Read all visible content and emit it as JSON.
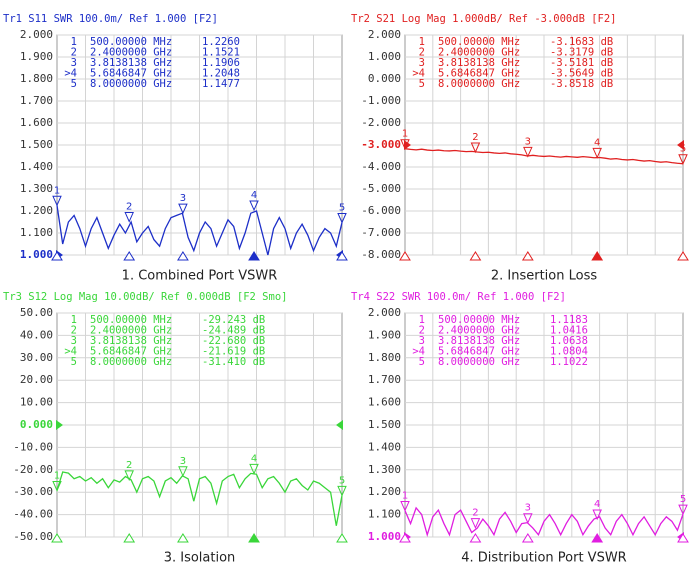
{
  "chart_data": [
    {
      "type": "line",
      "header": "Tr1 S11 SWR 100.0m/ Ref 1.000 [F2]",
      "caption": "1. Combined Port VSWR",
      "xlim": [
        0.5,
        8
      ],
      "ylim": [
        1.0,
        2.0
      ],
      "ref": 1.0,
      "yticks": [
        {
          "value": 1.0,
          "label": "1.000"
        },
        {
          "value": 1.1,
          "label": "1.100"
        },
        {
          "value": 1.2,
          "label": "1.200"
        },
        {
          "value": 1.3,
          "label": "1.300"
        },
        {
          "value": 1.4,
          "label": "1.400"
        },
        {
          "value": 1.5,
          "label": "1.500"
        },
        {
          "value": 1.6,
          "label": "1.600"
        },
        {
          "value": 1.7,
          "label": "1.700"
        },
        {
          "value": 1.8,
          "label": "1.800"
        },
        {
          "value": 1.9,
          "label": "1.900"
        },
        {
          "value": 2.0,
          "label": "2.000"
        }
      ],
      "series": [
        {
          "color": "#1d2fc8",
          "x": [
            0.5,
            0.65,
            0.8,
            0.95,
            1.1,
            1.25,
            1.4,
            1.55,
            1.7,
            1.85,
            2.0,
            2.15,
            2.3,
            2.45,
            2.6,
            2.75,
            2.9,
            3.05,
            3.2,
            3.35,
            3.5,
            3.65,
            3.8,
            3.95,
            4.1,
            4.25,
            4.4,
            4.55,
            4.7,
            4.85,
            5.0,
            5.15,
            5.3,
            5.45,
            5.6,
            5.75,
            5.9,
            6.05,
            6.2,
            6.35,
            6.5,
            6.65,
            6.8,
            6.95,
            7.1,
            7.25,
            7.4,
            7.55,
            7.7,
            7.85,
            8.0
          ],
          "values": [
            1.226,
            1.05,
            1.15,
            1.18,
            1.12,
            1.04,
            1.12,
            1.17,
            1.1,
            1.03,
            1.09,
            1.14,
            1.1,
            1.15,
            1.06,
            1.1,
            1.13,
            1.07,
            1.04,
            1.12,
            1.17,
            1.18,
            1.19,
            1.08,
            1.02,
            1.1,
            1.15,
            1.12,
            1.04,
            1.1,
            1.16,
            1.13,
            1.03,
            1.1,
            1.19,
            1.2,
            1.1,
            1.0,
            1.12,
            1.17,
            1.12,
            1.03,
            1.1,
            1.14,
            1.09,
            1.02,
            1.08,
            1.12,
            1.1,
            1.04,
            1.1477
          ]
        }
      ],
      "markers": {
        "ids": [
          "1",
          "2",
          "3",
          ">4",
          "5"
        ],
        "plot_labels": [
          "1",
          "2",
          "3",
          "4",
          "5"
        ],
        "x": [
          0.5,
          2.4,
          3.8138138,
          5.6846847,
          8.0
        ],
        "x_labels": [
          "500.00000 MHz",
          "2.4000000 GHz",
          "3.8138138 GHz",
          "5.6846847 GHz",
          "8.0000000 GHz"
        ],
        "values": [
          1.226,
          1.1521,
          1.1906,
          1.2048,
          1.1477
        ],
        "value_labels": [
          "1.2260",
          "1.1521",
          "1.1906",
          "1.2048",
          "1.1477"
        ]
      }
    },
    {
      "type": "line",
      "header": "Tr2 S21 Log Mag 1.000dB/ Ref -3.000dB [F2]",
      "caption": "2. Insertion Loss",
      "xlim": [
        0.5,
        8
      ],
      "ylim": [
        -8,
        2
      ],
      "ref": -3,
      "yticks": [
        {
          "value": -8,
          "label": "-8.000"
        },
        {
          "value": -7,
          "label": "-7.000"
        },
        {
          "value": -6,
          "label": "-6.000"
        },
        {
          "value": -5,
          "label": "-5.000"
        },
        {
          "value": -4,
          "label": "-4.000"
        },
        {
          "value": -3,
          "label": "-3.000"
        },
        {
          "value": -2,
          "label": "-2.000"
        },
        {
          "value": -1,
          "label": "-1.000"
        },
        {
          "value": 0,
          "label": "0.000"
        },
        {
          "value": 1,
          "label": "1.000"
        },
        {
          "value": 2,
          "label": "2.000"
        }
      ],
      "series": [
        {
          "color": "#e02020",
          "x": [
            0.5,
            0.65,
            0.8,
            0.95,
            1.1,
            1.25,
            1.4,
            1.55,
            1.7,
            1.85,
            2.0,
            2.15,
            2.3,
            2.45,
            2.6,
            2.75,
            2.9,
            3.05,
            3.2,
            3.35,
            3.5,
            3.65,
            3.8,
            3.95,
            4.1,
            4.25,
            4.4,
            4.55,
            4.7,
            4.85,
            5.0,
            5.15,
            5.3,
            5.45,
            5.6,
            5.75,
            5.9,
            6.05,
            6.2,
            6.35,
            6.5,
            6.65,
            6.8,
            6.95,
            7.1,
            7.25,
            7.4,
            7.55,
            7.7,
            7.85,
            8.0
          ],
          "values": [
            -3.168,
            -3.2,
            -3.22,
            -3.19,
            -3.23,
            -3.25,
            -3.23,
            -3.26,
            -3.27,
            -3.25,
            -3.28,
            -3.3,
            -3.29,
            -3.32,
            -3.34,
            -3.33,
            -3.36,
            -3.38,
            -3.36,
            -3.4,
            -3.42,
            -3.45,
            -3.5,
            -3.47,
            -3.5,
            -3.52,
            -3.5,
            -3.53,
            -3.55,
            -3.52,
            -3.54,
            -3.56,
            -3.53,
            -3.55,
            -3.58,
            -3.57,
            -3.6,
            -3.64,
            -3.62,
            -3.66,
            -3.68,
            -3.66,
            -3.7,
            -3.73,
            -3.71,
            -3.75,
            -3.78,
            -3.76,
            -3.8,
            -3.83,
            -3.852
          ]
        }
      ],
      "markers": {
        "ids": [
          "1",
          "2",
          "3",
          ">4",
          "5"
        ],
        "plot_labels": [
          "1",
          "2",
          "3",
          "4",
          "5"
        ],
        "x": [
          0.5,
          2.4,
          3.8138138,
          5.6846847,
          8.0
        ],
        "x_labels": [
          "500.00000 MHz",
          "2.4000000 GHz",
          "3.8138138 GHz",
          "5.6846847 GHz",
          "8.0000000 GHz"
        ],
        "values": [
          -3.1683,
          -3.3179,
          -3.5181,
          -3.5649,
          -3.8518
        ],
        "value_labels": [
          "-3.1683 dB",
          "-3.3179 dB",
          "-3.5181 dB",
          "-3.5649 dB",
          "-3.8518 dB"
        ]
      }
    },
    {
      "type": "line",
      "header": "Tr3 S12 Log Mag 10.00dB/ Ref 0.000dB [F2 Smo]",
      "caption": "3. Isolation",
      "xlim": [
        0.5,
        8
      ],
      "ylim": [
        -50,
        50
      ],
      "ref": 0,
      "yticks": [
        {
          "value": -50,
          "label": "-50.00"
        },
        {
          "value": -40,
          "label": "-40.00"
        },
        {
          "value": -30,
          "label": "-30.00"
        },
        {
          "value": -20,
          "label": "-20.00"
        },
        {
          "value": -10,
          "label": "-10.00"
        },
        {
          "value": 0,
          "label": "0.000"
        },
        {
          "value": 10,
          "label": "10.00"
        },
        {
          "value": 20,
          "label": "20.00"
        },
        {
          "value": 30,
          "label": "30.00"
        },
        {
          "value": 40,
          "label": "40.00"
        },
        {
          "value": 50,
          "label": "50.00"
        }
      ],
      "series": [
        {
          "color": "#3ad63a",
          "x": [
            0.5,
            0.65,
            0.8,
            0.95,
            1.1,
            1.25,
            1.4,
            1.55,
            1.7,
            1.85,
            2.0,
            2.15,
            2.3,
            2.45,
            2.6,
            2.75,
            2.9,
            3.05,
            3.2,
            3.35,
            3.5,
            3.65,
            3.8,
            3.95,
            4.1,
            4.25,
            4.4,
            4.55,
            4.7,
            4.85,
            5.0,
            5.15,
            5.3,
            5.45,
            5.6,
            5.75,
            5.9,
            6.05,
            6.2,
            6.35,
            6.5,
            6.65,
            6.8,
            6.95,
            7.1,
            7.25,
            7.4,
            7.55,
            7.7,
            7.85,
            8.0
          ],
          "values": [
            -29.24,
            -21.0,
            -21.5,
            -24.0,
            -23.0,
            -25.0,
            -23.5,
            -26.0,
            -24.0,
            -28.0,
            -24.5,
            -25.5,
            -23.0,
            -24.5,
            -30.0,
            -24.0,
            -23.0,
            -25.0,
            -32.0,
            -25.0,
            -23.5,
            -26.0,
            -22.7,
            -24.0,
            -34.0,
            -24.0,
            -23.0,
            -26.0,
            -35.0,
            -25.0,
            -23.0,
            -22.0,
            -28.0,
            -24.0,
            -21.6,
            -22.0,
            -28.0,
            -24.0,
            -23.0,
            -26.0,
            -30.0,
            -25.0,
            -24.0,
            -27.0,
            -29.0,
            -25.0,
            -26.0,
            -28.0,
            -30.0,
            -45.0,
            -31.41
          ]
        }
      ],
      "markers": {
        "ids": [
          "1",
          "2",
          "3",
          ">4",
          "5"
        ],
        "plot_labels": [
          "1",
          "2",
          "3",
          "4",
          "5"
        ],
        "x": [
          0.5,
          2.4,
          3.8138138,
          5.6846847,
          8.0
        ],
        "x_labels": [
          "500.00000 MHz",
          "2.4000000 GHz",
          "3.8138138 GHz",
          "5.6846847 GHz",
          "8.0000000 GHz"
        ],
        "values": [
          -29.243,
          -24.489,
          -22.68,
          -21.619,
          -31.41
        ],
        "value_labels": [
          "-29.243 dB",
          "-24.489 dB",
          "-22.680 dB",
          "-21.619 dB",
          "-31.410 dB"
        ]
      }
    },
    {
      "type": "line",
      "header": "Tr4 S22 SWR 100.0m/ Ref 1.000 [F2]",
      "caption": "4. Distribution Port VSWR",
      "xlim": [
        0.5,
        8
      ],
      "ylim": [
        1.0,
        2.0
      ],
      "ref": 1.0,
      "yticks": [
        {
          "value": 1.0,
          "label": "1.000"
        },
        {
          "value": 1.1,
          "label": "1.100"
        },
        {
          "value": 1.2,
          "label": "1.200"
        },
        {
          "value": 1.3,
          "label": "1.300"
        },
        {
          "value": 1.4,
          "label": "1.400"
        },
        {
          "value": 1.5,
          "label": "1.500"
        },
        {
          "value": 1.6,
          "label": "1.600"
        },
        {
          "value": 1.7,
          "label": "1.700"
        },
        {
          "value": 1.8,
          "label": "1.800"
        },
        {
          "value": 1.9,
          "label": "1.900"
        },
        {
          "value": 2.0,
          "label": "2.000"
        }
      ],
      "series": [
        {
          "color": "#e01ee0",
          "x": [
            0.5,
            0.65,
            0.8,
            0.95,
            1.1,
            1.25,
            1.4,
            1.55,
            1.7,
            1.85,
            2.0,
            2.15,
            2.3,
            2.45,
            2.6,
            2.75,
            2.9,
            3.05,
            3.2,
            3.35,
            3.5,
            3.65,
            3.8,
            3.95,
            4.1,
            4.25,
            4.4,
            4.55,
            4.7,
            4.85,
            5.0,
            5.15,
            5.3,
            5.45,
            5.6,
            5.75,
            5.9,
            6.05,
            6.2,
            6.35,
            6.5,
            6.65,
            6.8,
            6.95,
            7.1,
            7.25,
            7.4,
            7.55,
            7.7,
            7.85,
            8.0
          ],
          "values": [
            1.118,
            1.06,
            1.13,
            1.1,
            1.01,
            1.09,
            1.12,
            1.06,
            1.01,
            1.1,
            1.12,
            1.07,
            1.02,
            1.04,
            1.08,
            1.05,
            1.01,
            1.08,
            1.11,
            1.07,
            1.02,
            1.06,
            1.064,
            1.04,
            1.01,
            1.07,
            1.1,
            1.06,
            1.01,
            1.06,
            1.1,
            1.07,
            1.01,
            1.05,
            1.08,
            1.09,
            1.04,
            1.01,
            1.07,
            1.1,
            1.06,
            1.01,
            1.06,
            1.09,
            1.05,
            1.01,
            1.06,
            1.09,
            1.07,
            1.03,
            1.1022
          ]
        }
      ],
      "markers": {
        "ids": [
          "1",
          "2",
          "3",
          ">4",
          "5"
        ],
        "plot_labels": [
          "1",
          "2",
          "3",
          "4",
          "5"
        ],
        "x": [
          0.5,
          2.4,
          3.8138138,
          5.6846847,
          8.0
        ],
        "x_labels": [
          "500.00000 MHz",
          "2.4000000 GHz",
          "3.8138138 GHz",
          "5.6846847 GHz",
          "8.0000000 GHz"
        ],
        "values": [
          1.1183,
          1.0416,
          1.0638,
          1.0804,
          1.1022
        ],
        "value_labels": [
          "1.1183",
          "1.0416",
          "1.0638",
          "1.0804",
          "1.1022"
        ]
      }
    }
  ]
}
